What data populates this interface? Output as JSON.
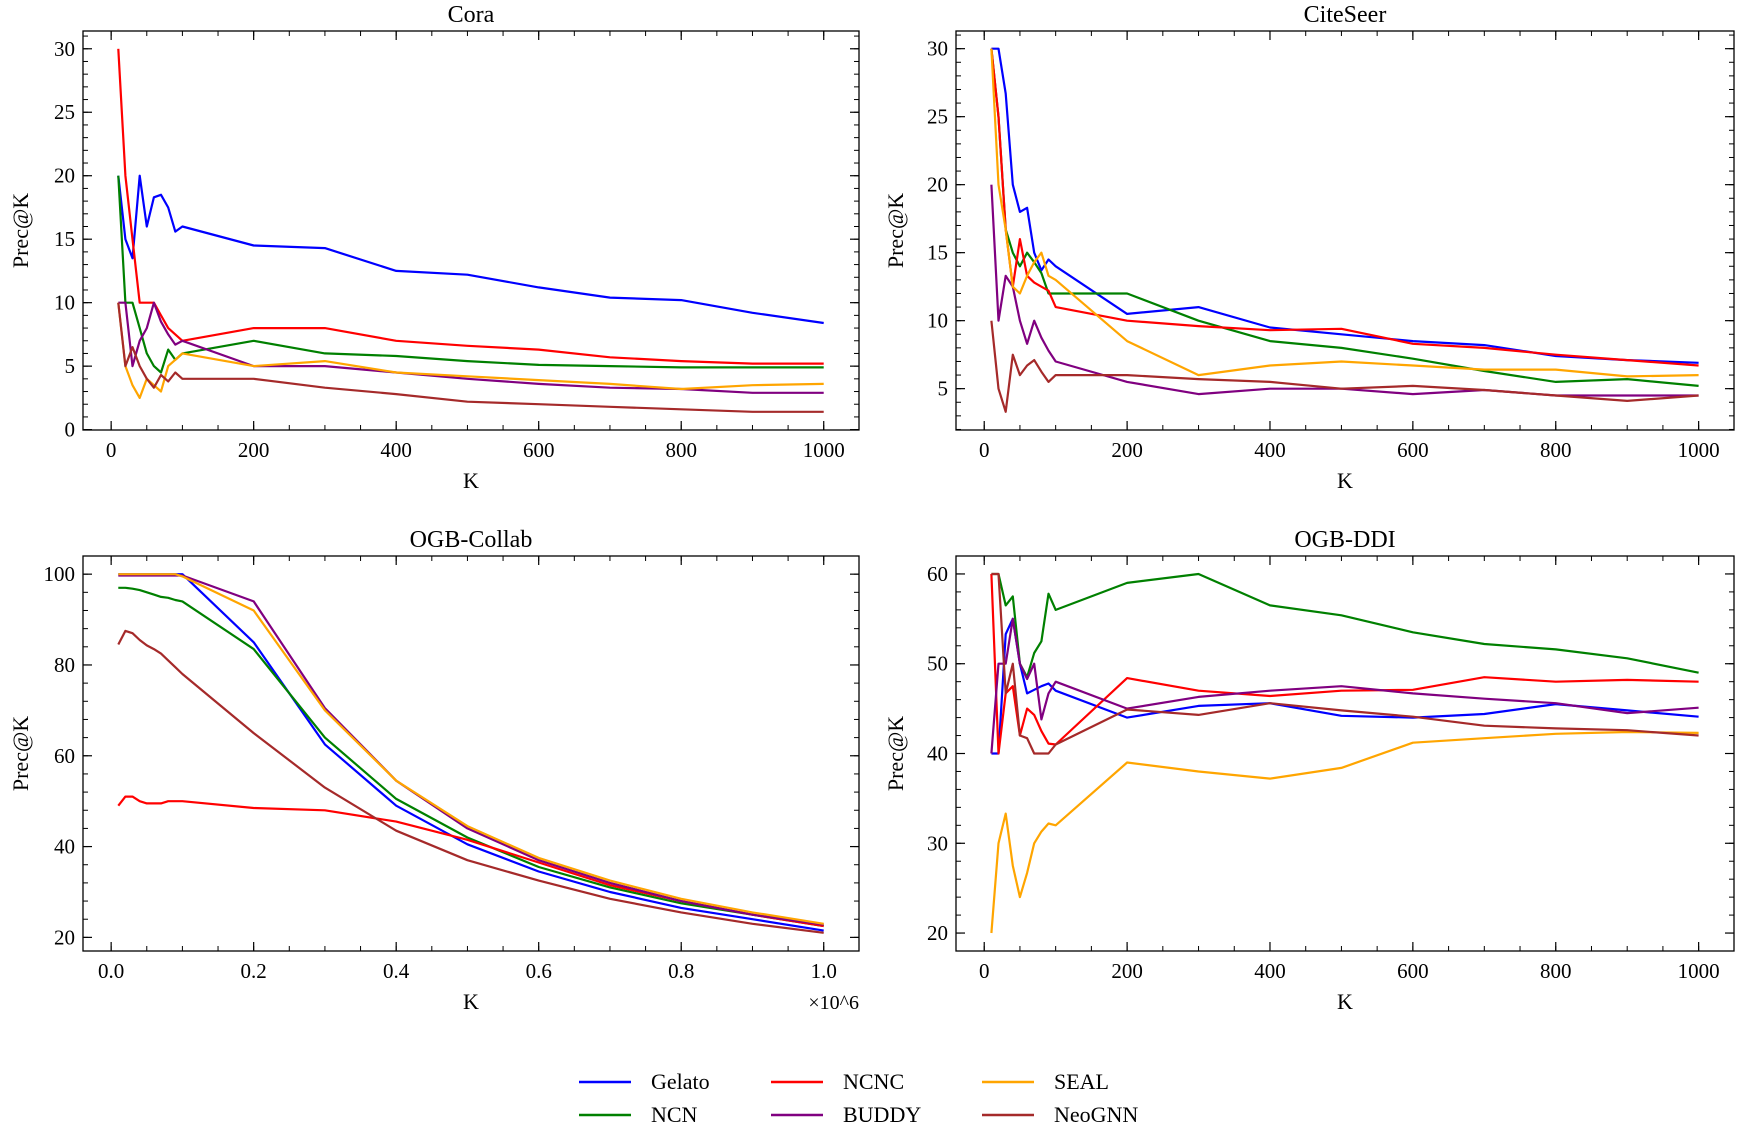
{
  "legend": {
    "placement": "bottom-center",
    "entries": [
      {
        "name": "Gelato",
        "color": "#0000ff"
      },
      {
        "name": "NCN",
        "color": "#008000"
      },
      {
        "name": "NCNC",
        "color": "#ff0000"
      },
      {
        "name": "BUDDY",
        "color": "#800080"
      },
      {
        "name": "SEAL",
        "color": "#ffa500"
      },
      {
        "name": "NeoGNN",
        "color": "#a52a2a"
      }
    ]
  },
  "chart_data": [
    {
      "type": "line",
      "title": "Cora",
      "xlabel": "K",
      "ylabel": "Prec@K",
      "xlim": [
        -39.5,
        1049.5
      ],
      "ylim": [
        -0.03,
        31.4
      ],
      "xticks": [
        0,
        200,
        400,
        600,
        800,
        1000
      ],
      "yticks": [
        0,
        5,
        10,
        15,
        20,
        25,
        30
      ],
      "x": [
        10,
        20,
        30,
        40,
        50,
        60,
        70,
        80,
        90,
        100,
        200,
        300,
        400,
        500,
        600,
        700,
        800,
        900,
        1000
      ],
      "series": [
        {
          "name": "Gelato",
          "values": [
            20,
            15,
            13.5,
            20,
            16,
            18.3,
            18.5,
            17.5,
            15.6,
            16,
            14.5,
            14.3,
            12.5,
            12.2,
            11.2,
            10.4,
            10.2,
            9.2,
            8.4
          ]
        },
        {
          "name": "NCN",
          "values": [
            20,
            10,
            10,
            8,
            6,
            5,
            4.5,
            6.3,
            5.5,
            6,
            7,
            6,
            5.8,
            5.4,
            5.1,
            5,
            4.9,
            4.9,
            4.9
          ]
        },
        {
          "name": "NCNC",
          "values": [
            30,
            20,
            15,
            10,
            10,
            10,
            9,
            8,
            7.5,
            7,
            8,
            8,
            7,
            6.6,
            6.3,
            5.7,
            5.4,
            5.2,
            5.2
          ]
        },
        {
          "name": "BUDDY",
          "values": [
            10,
            10,
            5,
            7,
            8,
            10,
            8.5,
            7.5,
            6.7,
            7,
            5,
            5,
            4.5,
            4,
            3.6,
            3.3,
            3.2,
            2.9,
            2.9
          ]
        },
        {
          "name": "SEAL",
          "values": [
            10,
            5,
            3.5,
            2.5,
            4,
            3.5,
            3,
            5,
            5.5,
            6,
            5,
            5.4,
            4.5,
            4.2,
            3.9,
            3.6,
            3.2,
            3.5,
            3.6
          ]
        },
        {
          "name": "NeoGNN",
          "values": [
            10,
            5,
            6.5,
            5,
            4,
            3.3,
            4.3,
            3.8,
            4.5,
            4,
            4,
            3.3,
            2.8,
            2.2,
            2,
            1.8,
            1.6,
            1.4,
            1.4
          ]
        }
      ]
    },
    {
      "type": "line",
      "title": "CiteSeer",
      "xlabel": "K",
      "ylabel": "Prec@K",
      "xlim": [
        -39.5,
        1049.5
      ],
      "ylim": [
        1.96,
        31.3
      ],
      "xticks": [
        0,
        200,
        400,
        600,
        800,
        1000
      ],
      "yticks": [
        5,
        10,
        15,
        20,
        25,
        30
      ],
      "x": [
        10,
        20,
        30,
        40,
        50,
        60,
        70,
        80,
        90,
        100,
        200,
        300,
        400,
        500,
        600,
        700,
        800,
        900,
        1000
      ],
      "series": [
        {
          "name": "Gelato",
          "values": [
            30,
            30,
            26.7,
            20,
            18,
            18.3,
            15,
            13.7,
            14.5,
            14,
            10.5,
            11,
            9.5,
            9,
            8.5,
            8.2,
            7.4,
            7.1,
            6.9
          ]
        },
        {
          "name": "NCN",
          "values": [
            30,
            25,
            16.7,
            15,
            14,
            15,
            14.3,
            13.5,
            12,
            12,
            12,
            10,
            8.5,
            8,
            7.2,
            6.3,
            5.5,
            5.7,
            5.2
          ]
        },
        {
          "name": "NCNC",
          "values": [
            30,
            25,
            16.7,
            12.5,
            16,
            13.3,
            12.8,
            12.5,
            12.2,
            11,
            10,
            9.6,
            9.3,
            9.4,
            8.3,
            8,
            7.5,
            7.1,
            6.7
          ]
        },
        {
          "name": "BUDDY",
          "values": [
            20,
            10,
            13.3,
            12.5,
            10,
            8.3,
            10,
            8.75,
            7.8,
            7,
            5.5,
            4.6,
            5,
            5,
            4.6,
            4.9,
            4.5,
            4.5,
            4.5
          ]
        },
        {
          "name": "SEAL",
          "values": [
            30,
            20,
            16.7,
            12.5,
            12,
            13.3,
            14.3,
            15,
            13.3,
            13,
            8.5,
            6,
            6.7,
            7,
            6.7,
            6.4,
            6.4,
            5.9,
            6
          ]
        },
        {
          "name": "NeoGNN",
          "values": [
            10,
            5,
            3.3,
            7.5,
            6,
            6.7,
            7.1,
            6.25,
            5.5,
            6,
            6,
            5.7,
            5.5,
            5,
            5.2,
            4.9,
            4.5,
            4.1,
            4.5
          ]
        }
      ]
    },
    {
      "type": "line",
      "title": "OGB-Collab",
      "xlabel": "K",
      "ylabel": "Prec@K",
      "x_scale_label": "×10^6",
      "xlim": [
        -0.0395,
        1.0495
      ],
      "ylim": [
        17,
        104
      ],
      "xticks": [
        0.0,
        0.2,
        0.4,
        0.6,
        0.8,
        1.0
      ],
      "xtick_labels": [
        "0.0",
        "0.2",
        "0.4",
        "0.6",
        "0.8",
        "1.0"
      ],
      "yticks": [
        20,
        40,
        60,
        80,
        100
      ],
      "x": [
        0.01,
        0.02,
        0.03,
        0.04,
        0.05,
        0.06,
        0.07,
        0.08,
        0.09,
        0.1,
        0.2,
        0.3,
        0.4,
        0.5,
        0.6,
        0.7,
        0.8,
        0.9,
        1.0
      ],
      "series": [
        {
          "name": "Gelato",
          "values": [
            100,
            100,
            100,
            100,
            100,
            100,
            100,
            100,
            100,
            100,
            85,
            62.5,
            49,
            40.5,
            34.5,
            30,
            26.5,
            24,
            21.5
          ]
        },
        {
          "name": "NCN",
          "values": [
            97,
            97,
            96.8,
            96.5,
            96,
            95.5,
            95,
            94.8,
            94.3,
            94,
            83.5,
            64,
            50.5,
            42,
            35.5,
            31,
            27.5,
            25,
            22.5
          ]
        },
        {
          "name": "NCNC",
          "values": [
            49,
            51,
            51,
            50,
            49.5,
            49.5,
            49.5,
            50,
            50,
            50,
            48.5,
            48,
            45.5,
            41.5,
            36.5,
            31.5,
            28,
            25,
            22.5
          ]
        },
        {
          "name": "BUDDY",
          "values": [
            99.7,
            99.7,
            99.7,
            99.7,
            99.7,
            99.7,
            99.7,
            99.7,
            99.7,
            99.7,
            94,
            70.5,
            54.5,
            44,
            37,
            32,
            28,
            25,
            22.8
          ]
        },
        {
          "name": "SEAL",
          "values": [
            100,
            100,
            100,
            100,
            100,
            100,
            100,
            100,
            100,
            99.5,
            92,
            70,
            54.5,
            44.5,
            37.5,
            32.5,
            28.5,
            25.5,
            23
          ]
        },
        {
          "name": "NeoGNN",
          "values": [
            84.5,
            87.5,
            87,
            85.5,
            84.3,
            83.5,
            82.5,
            81,
            79.5,
            78,
            65,
            53,
            43.5,
            37,
            32.5,
            28.5,
            25.5,
            23,
            21
          ]
        }
      ]
    },
    {
      "type": "line",
      "title": "OGB-DDI",
      "xlabel": "K",
      "ylabel": "Prec@K",
      "xlim": [
        -39.5,
        1049.5
      ],
      "ylim": [
        18,
        62
      ],
      "xticks": [
        0,
        200,
        400,
        600,
        800,
        1000
      ],
      "yticks": [
        20,
        30,
        40,
        50,
        60
      ],
      "x": [
        10,
        20,
        30,
        40,
        50,
        60,
        70,
        80,
        90,
        100,
        200,
        300,
        400,
        500,
        600,
        700,
        800,
        900,
        1000
      ],
      "series": [
        {
          "name": "Gelato",
          "values": [
            40,
            40,
            53.3,
            55,
            50,
            46.7,
            47.1,
            47.5,
            47.8,
            47,
            44,
            45.3,
            45.6,
            44.2,
            44,
            44.4,
            45.5,
            44.8,
            44.1
          ]
        },
        {
          "name": "NCN",
          "values": [
            60,
            60,
            56.5,
            57.5,
            50,
            48.5,
            51.2,
            52.5,
            57.8,
            56,
            59,
            60,
            56.5,
            55.4,
            53.5,
            52.2,
            51.6,
            50.6,
            49
          ]
        },
        {
          "name": "NCNC",
          "values": [
            60,
            40,
            46.7,
            47.5,
            42,
            45,
            44.3,
            42.5,
            41.1,
            41,
            48.4,
            47,
            46.4,
            47,
            47.1,
            48.5,
            48,
            48.2,
            48
          ]
        },
        {
          "name": "BUDDY",
          "values": [
            40,
            50,
            50,
            55,
            50,
            48.3,
            50,
            43.8,
            46.7,
            48,
            45,
            46.3,
            47,
            47.5,
            46.7,
            46.1,
            45.6,
            44.5,
            45.1
          ]
        },
        {
          "name": "SEAL",
          "values": [
            20,
            30,
            33.3,
            27.5,
            24,
            26.7,
            30,
            31.3,
            32.2,
            32,
            39,
            38,
            37.2,
            38.4,
            41.2,
            41.7,
            42.2,
            42.4,
            42.3
          ]
        },
        {
          "name": "NeoGNN",
          "values": [
            60,
            60,
            46.7,
            50,
            42,
            41.7,
            40,
            40,
            40,
            41,
            44.9,
            44.3,
            45.6,
            44.8,
            44.1,
            43.1,
            42.8,
            42.6,
            42
          ]
        }
      ]
    }
  ]
}
